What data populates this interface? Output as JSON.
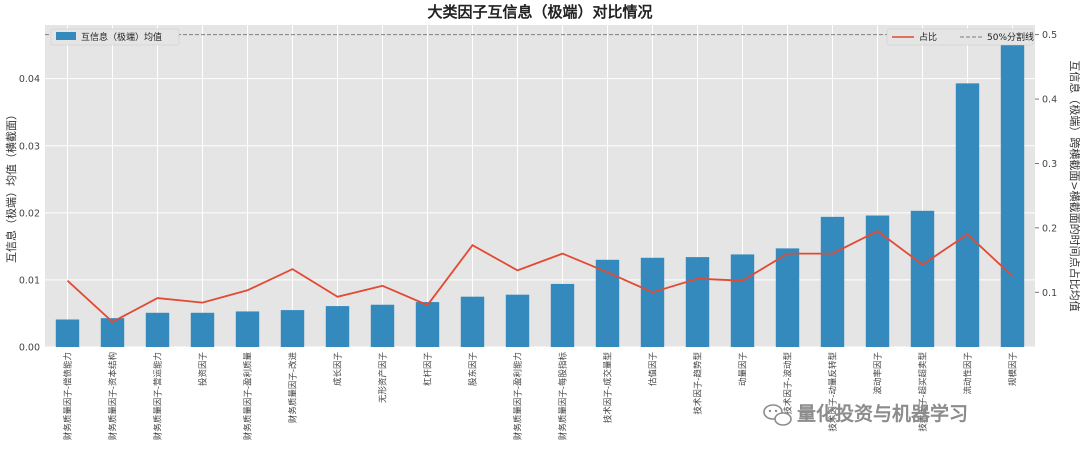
{
  "chart_data": {
    "type": "bar",
    "title": "大类因子互信息（极端）对比情况",
    "categories": [
      "财务质量因子-偿债能力",
      "财务质量因子-资本结构",
      "财务质量因子-营运能力",
      "投资因子",
      "财务质量因子-盈利质量",
      "财务质量因子-改进",
      "成长因子",
      "无形资产因子",
      "杠杆因子",
      "股东因子",
      "财务质量因子-盈利能力",
      "财务质量因子-每股指标",
      "技术因子-成交量型",
      "估值因子",
      "技术因子-趋势型",
      "动量因子",
      "技术因子-波动型",
      "技术因子-动量反转型",
      "波动率因子",
      "技术因子-超买超卖型",
      "流动性因子",
      "规模因子"
    ],
    "series": [
      {
        "name": "互信息（极端）均值",
        "type": "bar",
        "axis": "left",
        "values": [
          0.0041,
          0.0043,
          0.0051,
          0.0051,
          0.0053,
          0.0055,
          0.0061,
          0.0063,
          0.0067,
          0.0075,
          0.0078,
          0.0094,
          0.013,
          0.0133,
          0.0134,
          0.0138,
          0.0147,
          0.0194,
          0.0196,
          0.0203,
          0.0393,
          0.046
        ]
      },
      {
        "name": "占比",
        "type": "line",
        "axis": "right",
        "values": [
          0.118,
          0.054,
          0.091,
          0.084,
          0.103,
          0.136,
          0.093,
          0.11,
          0.08,
          0.173,
          0.134,
          0.16,
          0.131,
          0.1,
          0.121,
          0.118,
          0.16,
          0.16,
          0.195,
          0.143,
          0.19,
          0.125
        ]
      },
      {
        "name": "50%分割线",
        "type": "hline",
        "axis": "right",
        "value": 0.5
      }
    ],
    "ylabel": "互信息（极端）均值（横截面）",
    "y2label": "互信息（极端）跨横截面>横截面的时间点占比均值",
    "ylim": [
      0,
      0.048
    ],
    "y2lim": [
      0.015,
      0.515
    ],
    "yticks": [
      "0.00",
      "0.01",
      "0.02",
      "0.03",
      "0.04"
    ],
    "y2ticks": [
      "0.1",
      "0.2",
      "0.3",
      "0.4",
      "0.5"
    ],
    "grid": true,
    "legend_left": "top-left",
    "legend_right": "top-right",
    "colors": {
      "bar": "#348abd",
      "line": "#e24a33",
      "hline": "#808080",
      "background": "#e5e5e5",
      "grid": "#ffffff"
    }
  },
  "watermark": {
    "text": "量化投资与机器学习",
    "icon": "wechat-icon"
  }
}
